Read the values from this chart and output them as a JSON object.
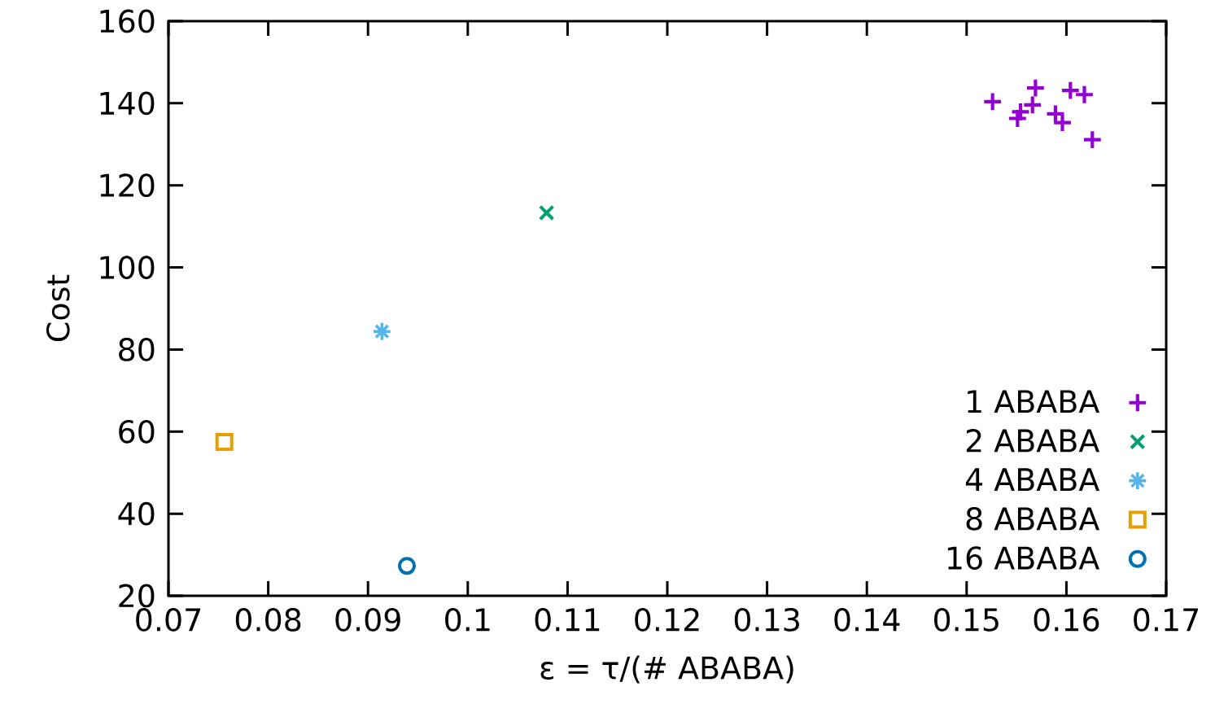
{
  "chart_data": {
    "type": "scatter",
    "xlabel": "ε = τ/(# ABABA)",
    "ylabel": "Cost",
    "xlim": [
      0.07,
      0.17
    ],
    "xticks": [
      0.07,
      0.08,
      0.09,
      0.1,
      0.11,
      0.12,
      0.13,
      0.14,
      0.15,
      0.16,
      0.17
    ],
    "ylim": [
      20,
      160
    ],
    "yticks": [
      20,
      40,
      60,
      80,
      100,
      120,
      140,
      160
    ],
    "legend": "bottom right",
    "grid": false,
    "series": [
      {
        "name": "1 ABABA",
        "color": "#9400d3",
        "marker": "plus",
        "x": [
          0.1526,
          0.1569,
          0.1566,
          0.1554,
          0.1551,
          0.1604,
          0.1618,
          0.1589,
          0.1596,
          0.1626
        ],
        "values": [
          140.4,
          143.7,
          139.6,
          137.9,
          136.3,
          143.1,
          142.1,
          137.4,
          135.3,
          131.1
        ]
      },
      {
        "name": "2 ABABA",
        "color": "#009e73",
        "marker": "cross",
        "x": [
          0.1079
        ],
        "values": [
          113.3
        ]
      },
      {
        "name": "4 ABABA",
        "color": "#56b4e9",
        "marker": "star",
        "x": [
          0.0914
        ],
        "values": [
          84.4
        ]
      },
      {
        "name": "8 ABABA",
        "color": "#e69f00",
        "marker": "square",
        "x": [
          0.0756
        ],
        "values": [
          57.5
        ]
      },
      {
        "name": "16 ABABA",
        "color": "#0072b2",
        "marker": "circle",
        "x": [
          0.0939
        ],
        "values": [
          27.3
        ]
      }
    ]
  }
}
